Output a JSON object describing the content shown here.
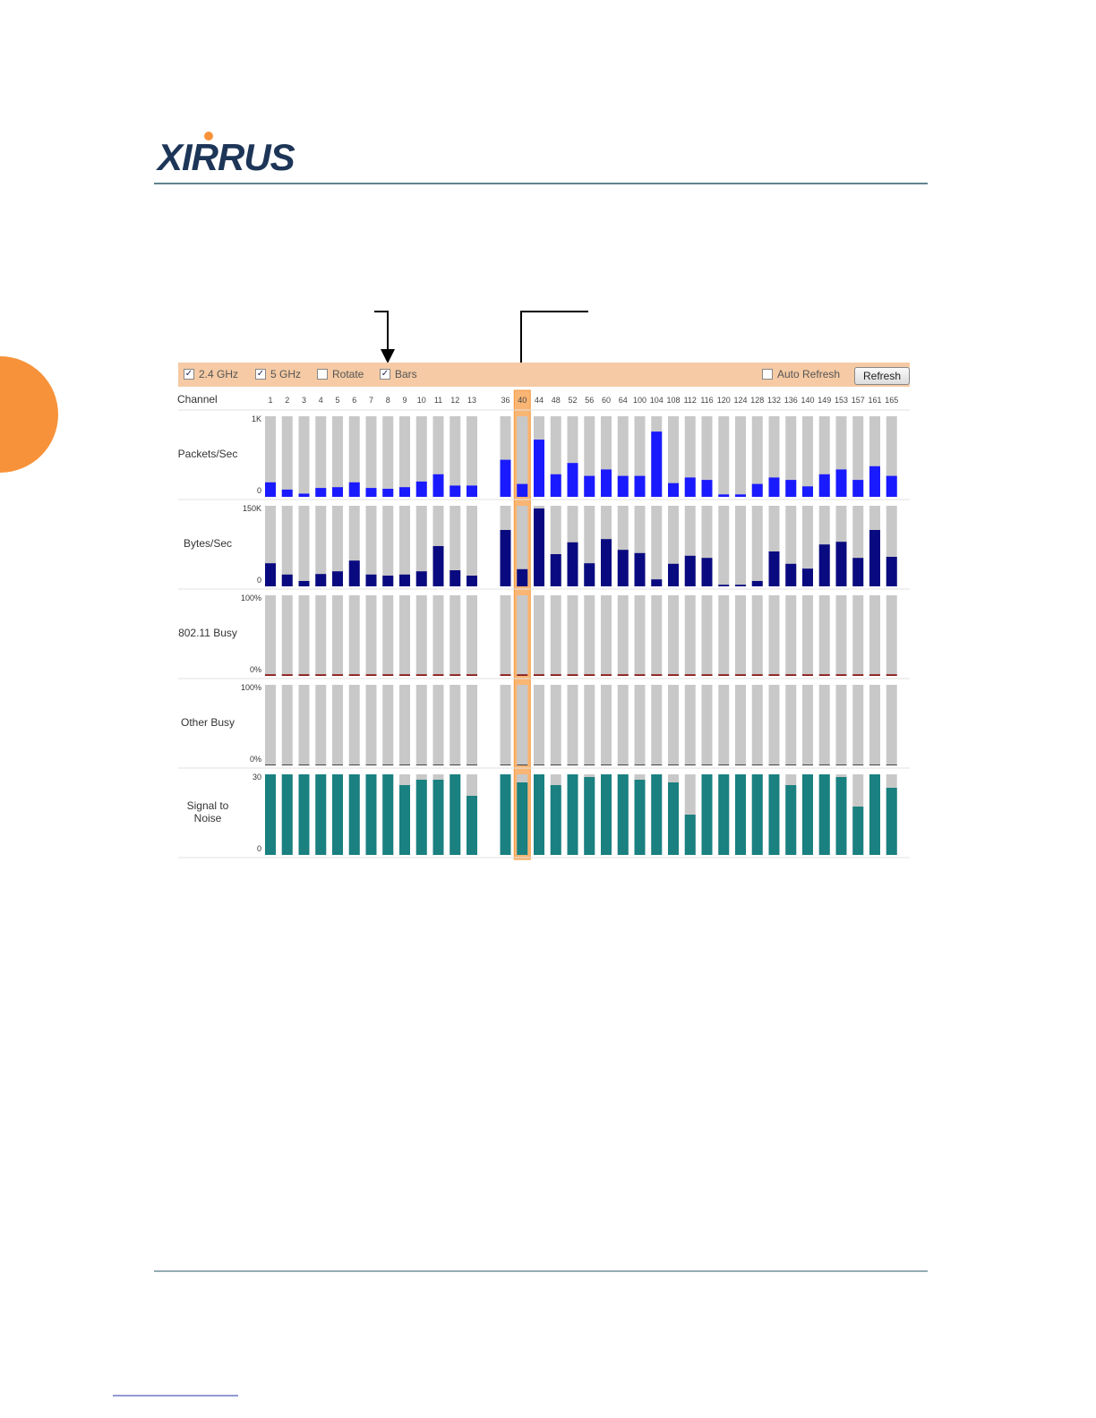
{
  "header": {
    "logo": "XIRRUS"
  },
  "toolbar": {
    "options": [
      {
        "label": "2.4 GHz",
        "checked": true
      },
      {
        "label": "5 GHz",
        "checked": true
      },
      {
        "label": "Rotate",
        "checked": false
      },
      {
        "label": "Bars",
        "checked": true
      },
      {
        "label": "Auto Refresh",
        "checked": false
      }
    ],
    "button": "Refresh"
  },
  "channel_label": "Channel",
  "channels": [
    "1",
    "2",
    "3",
    "4",
    "5",
    "6",
    "7",
    "8",
    "9",
    "10",
    "11",
    "12",
    "13",
    "36",
    "40",
    "44",
    "48",
    "52",
    "56",
    "60",
    "64",
    "100",
    "104",
    "108",
    "112",
    "116",
    "120",
    "124",
    "128",
    "132",
    "136",
    "140",
    "149",
    "153",
    "157",
    "161",
    "165"
  ],
  "highlighted_channel": "40",
  "rows": [
    {
      "label": "Packets/Sec",
      "color": "#1a1aff",
      "ylim": [
        0,
        1000
      ],
      "yticks": [
        0,
        {
          "value": 1000,
          "label": "1K"
        }
      ],
      "values": [
        180,
        90,
        40,
        110,
        120,
        180,
        110,
        100,
        120,
        190,
        280,
        140,
        140,
        460,
        160,
        710,
        280,
        420,
        260,
        340,
        260,
        260,
        810,
        170,
        240,
        210,
        30,
        30,
        160,
        240,
        210,
        130,
        280,
        340,
        210,
        380,
        260
      ]
    },
    {
      "label": "Bytes/Sec",
      "color": "#0a0a80",
      "ylim": [
        0,
        150000
      ],
      "yticks": [
        0,
        {
          "value": 150000,
          "label": "150K"
        }
      ],
      "values": [
        43000,
        22000,
        10000,
        23000,
        28000,
        48000,
        22000,
        20000,
        22000,
        28000,
        75000,
        30000,
        20000,
        105000,
        32000,
        145000,
        60000,
        82000,
        43000,
        88000,
        68000,
        62000,
        13000,
        42000,
        57000,
        53000,
        3000,
        3000,
        10000,
        65000,
        42000,
        33000,
        78000,
        83000,
        53000,
        105000,
        55000
      ]
    },
    {
      "label": "802.11 Busy",
      "color": "#8b1a1a",
      "ylim": [
        0,
        100
      ],
      "yticks": [
        {
          "value": 0,
          "label": "0%"
        },
        {
          "value": 100,
          "label": "100%"
        }
      ],
      "values": [
        2,
        2,
        2,
        2,
        2,
        2,
        2,
        2,
        2,
        2,
        2,
        2,
        2,
        2,
        2,
        2,
        2,
        2,
        2,
        2,
        2,
        2,
        2,
        2,
        2,
        2,
        2,
        2,
        2,
        2,
        2,
        2,
        2,
        2,
        2,
        2,
        2
      ]
    },
    {
      "label": "Other Busy",
      "color": "#333333",
      "ylim": [
        0,
        100
      ],
      "yticks": [
        {
          "value": 0,
          "label": "0%"
        },
        {
          "value": 100,
          "label": "100%"
        }
      ],
      "values": [
        1,
        1,
        1,
        1,
        1,
        1,
        1,
        1,
        1,
        1,
        1,
        1,
        1,
        1,
        1,
        1,
        1,
        1,
        1,
        1,
        1,
        1,
        1,
        1,
        1,
        1,
        1,
        1,
        1,
        1,
        1,
        1,
        1,
        1,
        1,
        1,
        1
      ]
    },
    {
      "label": "Signal to Noise",
      "color": "#1a8080",
      "ylim": [
        0,
        30
      ],
      "yticks": [
        0,
        30
      ],
      "values": [
        30,
        30,
        30,
        30,
        30,
        30,
        30,
        30,
        26,
        28,
        28,
        30,
        22,
        30,
        27,
        30,
        26,
        30,
        29,
        30,
        30,
        28,
        30,
        27,
        15,
        30,
        30,
        30,
        30,
        30,
        26,
        30,
        30,
        29,
        18,
        30,
        25
      ]
    }
  ]
}
